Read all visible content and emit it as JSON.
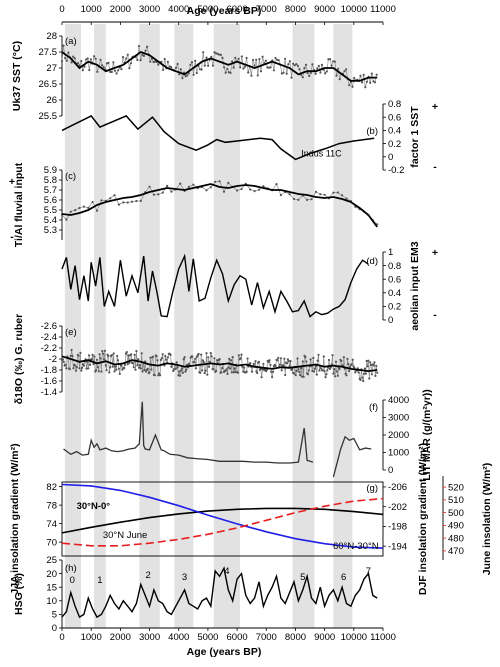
{
  "chart_data": {
    "type": "line",
    "title": "",
    "xlabel": "Age (years BP)",
    "xlim": [
      0,
      11000
    ],
    "x_ticks": [
      0,
      1000,
      2000,
      3000,
      4000,
      5000,
      6000,
      7000,
      8000,
      9000,
      10000,
      11000
    ],
    "shaded_intervals": [
      [
        100,
        650
      ],
      [
        1100,
        1500
      ],
      [
        2650,
        3350
      ],
      [
        3850,
        4500
      ],
      [
        5200,
        6100
      ],
      [
        7900,
        8650
      ],
      [
        9300,
        9950
      ]
    ],
    "panels": [
      {
        "letter": "(a)",
        "ylabel": "Uk37 SST (°C)",
        "axis": "left",
        "ylim": [
          25.5,
          28.0
        ],
        "ticks": [
          25.5,
          26.0,
          26.5,
          27.0,
          27.5,
          28.0
        ],
        "series": [
          {
            "name": "",
            "style": "smoothed",
            "x": [
              0,
              300,
              600,
              900,
              1200,
              1500,
              1800,
              2100,
              2400,
              2700,
              3000,
              3300,
              3600,
              3900,
              4200,
              4500,
              4800,
              5100,
              5400,
              5700,
              6000,
              6300,
              6600,
              6900,
              7200,
              7500,
              7800,
              8100,
              8400,
              8700,
              9000,
              9300,
              9600,
              9900,
              10200,
              10500,
              10800
            ],
            "y": [
              27.5,
              27.3,
              27.0,
              27.2,
              27.1,
              26.9,
              27.0,
              27.1,
              27.3,
              27.5,
              27.4,
              27.2,
              27.0,
              26.9,
              26.8,
              27.0,
              27.2,
              27.3,
              27.2,
              27.1,
              27.2,
              27.1,
              27.0,
              27.1,
              27.2,
              27.1,
              27.0,
              26.8,
              26.9,
              26.9,
              27.0,
              27.0,
              26.8,
              26.6,
              26.6,
              26.7,
              26.7
            ]
          }
        ]
      },
      {
        "letter": "(b)",
        "ylabel": "factor 1 SST",
        "axis": "right",
        "ylim": [
          -0.2,
          0.8
        ],
        "ticks": [
          -0.2,
          0.0,
          0.2,
          0.4,
          0.6,
          0.8
        ],
        "labels": [
          {
            "text": "Indus 11C",
            "x": 8200,
            "y": 0.05
          }
        ],
        "sign_plus": "+",
        "sign_minus": "-",
        "series": [
          {
            "name": "",
            "style": "line",
            "x": [
              0,
              1000,
              1300,
              2200,
              2600,
              3100,
              3500,
              4000,
              4600,
              5000,
              5300,
              5600,
              6000,
              6800,
              7200,
              7500,
              8000,
              8500,
              9000,
              9500,
              10000,
              10700
            ],
            "y": [
              0.4,
              0.62,
              0.45,
              0.62,
              0.42,
              0.6,
              0.38,
              0.2,
              0.1,
              0.18,
              0.26,
              0.22,
              0.24,
              0.28,
              0.26,
              0.12,
              -0.04,
              0.05,
              0.12,
              0.2,
              0.24,
              0.28
            ]
          }
        ]
      },
      {
        "letter": "(c)",
        "ylabel": "Ti/Al fluvial input",
        "axis": "left",
        "ylim": [
          5.2,
          5.9
        ],
        "ticks": [
          5.3,
          5.4,
          5.5,
          5.6,
          5.7,
          5.8,
          5.9
        ],
        "sign_plus": "+",
        "sign_minus": "-",
        "series": [
          {
            "name": "",
            "style": "smoothed",
            "x": [
              0,
              300,
              600,
              900,
              1200,
              1500,
              1800,
              2100,
              2400,
              2700,
              3000,
              3300,
              3600,
              3900,
              4200,
              4500,
              4800,
              5100,
              5400,
              5700,
              6000,
              6300,
              6600,
              6900,
              7200,
              7500,
              7800,
              8100,
              8400,
              8700,
              9000,
              9300,
              9600,
              9900,
              10200,
              10500,
              10800
            ],
            "y": [
              5.46,
              5.45,
              5.47,
              5.5,
              5.55,
              5.58,
              5.6,
              5.62,
              5.63,
              5.65,
              5.68,
              5.7,
              5.72,
              5.71,
              5.7,
              5.72,
              5.74,
              5.76,
              5.73,
              5.72,
              5.74,
              5.75,
              5.74,
              5.72,
              5.7,
              5.7,
              5.68,
              5.66,
              5.65,
              5.63,
              5.62,
              5.63,
              5.61,
              5.58,
              5.52,
              5.45,
              5.33
            ]
          }
        ]
      },
      {
        "letter": "(d)",
        "ylabel": "aeolian input EM3",
        "axis": "right",
        "ylim": [
          0.0,
          1.0
        ],
        "ticks": [
          0.0,
          0.2,
          0.4,
          0.6,
          0.8,
          1.0
        ],
        "sign_plus": "+",
        "sign_minus": "-",
        "series": [
          {
            "name": "",
            "style": "line",
            "x": [
              0,
              150,
              300,
              450,
              600,
              750,
              900,
              1000,
              1150,
              1300,
              1450,
              1600,
              1800,
              2000,
              2200,
              2400,
              2600,
              2800,
              2950,
              3100,
              3250,
              3400,
              3600,
              3800,
              4000,
              4200,
              4350,
              4500,
              4700,
              4900,
              5100,
              5300,
              5500,
              5700,
              5900,
              6100,
              6300,
              6500,
              6700,
              6900,
              7100,
              7300,
              7500,
              7700,
              7900,
              8100,
              8300,
              8500,
              8700,
              8900,
              9100,
              9300,
              9500,
              9700,
              9900,
              10100,
              10300,
              10500
            ],
            "y": [
              0.75,
              0.92,
              0.45,
              0.8,
              0.3,
              0.65,
              0.28,
              0.85,
              0.5,
              0.92,
              0.2,
              0.42,
              0.2,
              0.88,
              0.35,
              0.65,
              0.4,
              0.94,
              0.28,
              0.72,
              0.42,
              0.06,
              0.05,
              0.42,
              0.75,
              0.94,
              0.42,
              0.9,
              0.28,
              0.32,
              0.62,
              0.88,
              0.68,
              0.28,
              0.52,
              0.65,
              0.6,
              0.22,
              0.55,
              0.18,
              0.42,
              0.12,
              0.42,
              0.28,
              0.12,
              0.14,
              0.28,
              0.05,
              0.12,
              0.08,
              0.1,
              0.16,
              0.2,
              0.3,
              0.55,
              0.75,
              0.88,
              0.82
            ]
          }
        ]
      },
      {
        "letter": "(e)",
        "ylabel": "δ18O (‰) G. ruber",
        "axis": "left",
        "ylim": [
          -2.6,
          -1.4
        ],
        "ticks": [
          -2.6,
          -2.4,
          -2.2,
          -2.0,
          -1.8,
          -1.6,
          -1.4
        ],
        "inverted": true,
        "series": [
          {
            "name": "",
            "style": "smoothed",
            "x": [
              0,
              300,
              600,
              900,
              1200,
              1500,
              1800,
              2100,
              2400,
              2700,
              3000,
              3300,
              3600,
              3900,
              4200,
              4500,
              4800,
              5100,
              5400,
              5700,
              6000,
              6300,
              6600,
              6900,
              7200,
              7500,
              7800,
              8100,
              8400,
              8700,
              9000,
              9300,
              9600,
              9900,
              10200,
              10500,
              10800
            ],
            "y": [
              -2.05,
              -2.0,
              -1.95,
              -1.98,
              -1.92,
              -1.96,
              -1.9,
              -1.92,
              -1.98,
              -1.95,
              -1.9,
              -1.88,
              -1.92,
              -1.9,
              -1.86,
              -1.88,
              -1.9,
              -1.92,
              -1.9,
              -1.92,
              -1.88,
              -1.9,
              -1.86,
              -1.84,
              -1.82,
              -1.85,
              -1.84,
              -1.86,
              -1.88,
              -1.9,
              -1.86,
              -1.88,
              -1.86,
              -1.82,
              -1.8,
              -1.78,
              -1.8
            ]
          }
        ]
      },
      {
        "letter": "(f)",
        "ylabel": "LIT MAR (g/(m²yr))",
        "axis": "right",
        "ylim": [
          0,
          4000
        ],
        "ticks": [
          0,
          1000,
          2000,
          3000,
          4000
        ],
        "series": [
          {
            "name": "",
            "style": "line",
            "x": [
              50,
              300,
              500,
              700,
              900,
              1000,
              1100,
              1200,
              1300,
              1500,
              1700,
              1900,
              2100,
              2300,
              2500,
              2650,
              2750,
              2800,
              2850,
              3000,
              3200,
              3400,
              3500,
              3700,
              4000,
              4300,
              4600,
              5000,
              5400,
              5800,
              6200,
              6600,
              7000,
              7400,
              7800,
              8100,
              8300,
              8400,
              8500,
              8600
            ],
            "y": [
              1200,
              900,
              1050,
              850,
              900,
              1700,
              1300,
              1500,
              1150,
              1250,
              1100,
              1050,
              1100,
              1200,
              1250,
              1500,
              3900,
              1400,
              1200,
              1150,
              2000,
              1150,
              1100,
              900,
              850,
              700,
              650,
              600,
              500,
              500,
              500,
              450,
              450,
              400,
              400,
              450,
              2400,
              550,
              500,
              450
            ]
          },
          {
            "name": "",
            "style": "line",
            "x": [
              9300,
              9550,
              9700,
              9850,
              10000,
              10200,
              10400,
              10600
            ],
            "y": [
              -400,
              1200,
              1900,
              1700,
              1800,
              1150,
              1250,
              1200
            ]
          }
        ]
      },
      {
        "letter": "(g)",
        "ylabel": "JJA insolation gradient (W/m²)",
        "ylabel_right_1": "DJF insolation gradient (W/m²)",
        "ylabel_right_2": "June insolation (W/m²)",
        "axis": "left+right+right",
        "ylim": [
          67,
          83
        ],
        "ticks": [
          70,
          74,
          78,
          82
        ],
        "ylim_djf": [
          -192,
          -207
        ],
        "ticks_djf": [
          -194,
          -198,
          -202,
          -206
        ],
        "ylim_june": [
          466,
          524
        ],
        "ticks_june": [
          470,
          480,
          490,
          500,
          510,
          520
        ],
        "series": [
          {
            "name": "30°N-0°",
            "color": "#000000",
            "style": "line",
            "x": [
              0,
              1000,
              2000,
              3000,
              4000,
              5000,
              6000,
              7000,
              8000,
              9000,
              10000,
              11000
            ],
            "y": [
              72.0,
              73.2,
              74.3,
              75.3,
              76.1,
              76.7,
              77.1,
              77.3,
              77.3,
              77.1,
              76.6,
              76.0
            ]
          },
          {
            "name": "60°N-30°N",
            "color": "#1f1fe8",
            "style": "line",
            "x": [
              0,
              1000,
              2000,
              3000,
              4000,
              5000,
              6000,
              7000,
              8000,
              9000,
              10000,
              11000
            ],
            "y": [
              -206.5,
              -206.2,
              -205.3,
              -203.9,
              -202.2,
              -200.3,
              -198.5,
              -196.9,
              -195.5,
              -194.5,
              -193.8,
              -193.6
            ]
          },
          {
            "name": "30°N June",
            "color": "#e81e1e",
            "style": "dashed",
            "x": [
              0,
              1000,
              2000,
              3000,
              4000,
              5000,
              6000,
              7000,
              8000,
              9000,
              10000,
              11000
            ],
            "y": [
              476,
              474,
              474,
              476,
              479,
              483,
              488,
              494,
              500,
              505,
              509,
              511
            ]
          }
        ]
      },
      {
        "letter": "(h)",
        "ylabel": "HSG (%)",
        "axis": "left",
        "ylim": [
          0,
          25
        ],
        "ticks": [
          0,
          5,
          10,
          15,
          20,
          25
        ],
        "event_labels": [
          {
            "text": "0",
            "x": 350
          },
          {
            "text": "1",
            "x": 1300
          },
          {
            "text": "2",
            "x": 2950
          },
          {
            "text": "3",
            "x": 4200
          },
          {
            "text": "4",
            "x": 5650
          },
          {
            "text": "5",
            "x": 8250
          },
          {
            "text": "6",
            "x": 9650
          },
          {
            "text": "7",
            "x": 10500
          }
        ],
        "series": [
          {
            "name": "",
            "style": "line",
            "x": [
              0,
              150,
              300,
              450,
              600,
              750,
              900,
              1050,
              1200,
              1350,
              1500,
              1650,
              1800,
              1950,
              2100,
              2250,
              2400,
              2550,
              2700,
              2850,
              3000,
              3150,
              3300,
              3450,
              3600,
              3750,
              3900,
              4050,
              4200,
              4350,
              4500,
              4650,
              4800,
              4950,
              5100,
              5250,
              5400,
              5550,
              5700,
              5850,
              6000,
              6150,
              6300,
              6450,
              6600,
              6750,
              6900,
              7050,
              7200,
              7350,
              7500,
              7650,
              7800,
              7950,
              8100,
              8250,
              8400,
              8550,
              8700,
              8850,
              9000,
              9150,
              9300,
              9450,
              9600,
              9750,
              9900,
              10050,
              10200,
              10350,
              10500,
              10650,
              10800
            ],
            "y": [
              4,
              6,
              13,
              8,
              4,
              5,
              11,
              7,
              4,
              5,
              8,
              12,
              9,
              7,
              10,
              8,
              6,
              9,
              16,
              12,
              8,
              14,
              10,
              9,
              6,
              5,
              8,
              11,
              14,
              9,
              8,
              7,
              10,
              11,
              8,
              21,
              19,
              22,
              14,
              10,
              18,
              20,
              12,
              9,
              11,
              17,
              8,
              12,
              15,
              19,
              11,
              9,
              13,
              17,
              10,
              14,
              19,
              11,
              9,
              15,
              8,
              12,
              14,
              10,
              15,
              9,
              8,
              12,
              14,
              18,
              20,
              12,
              11
            ]
          }
        ]
      }
    ]
  }
}
